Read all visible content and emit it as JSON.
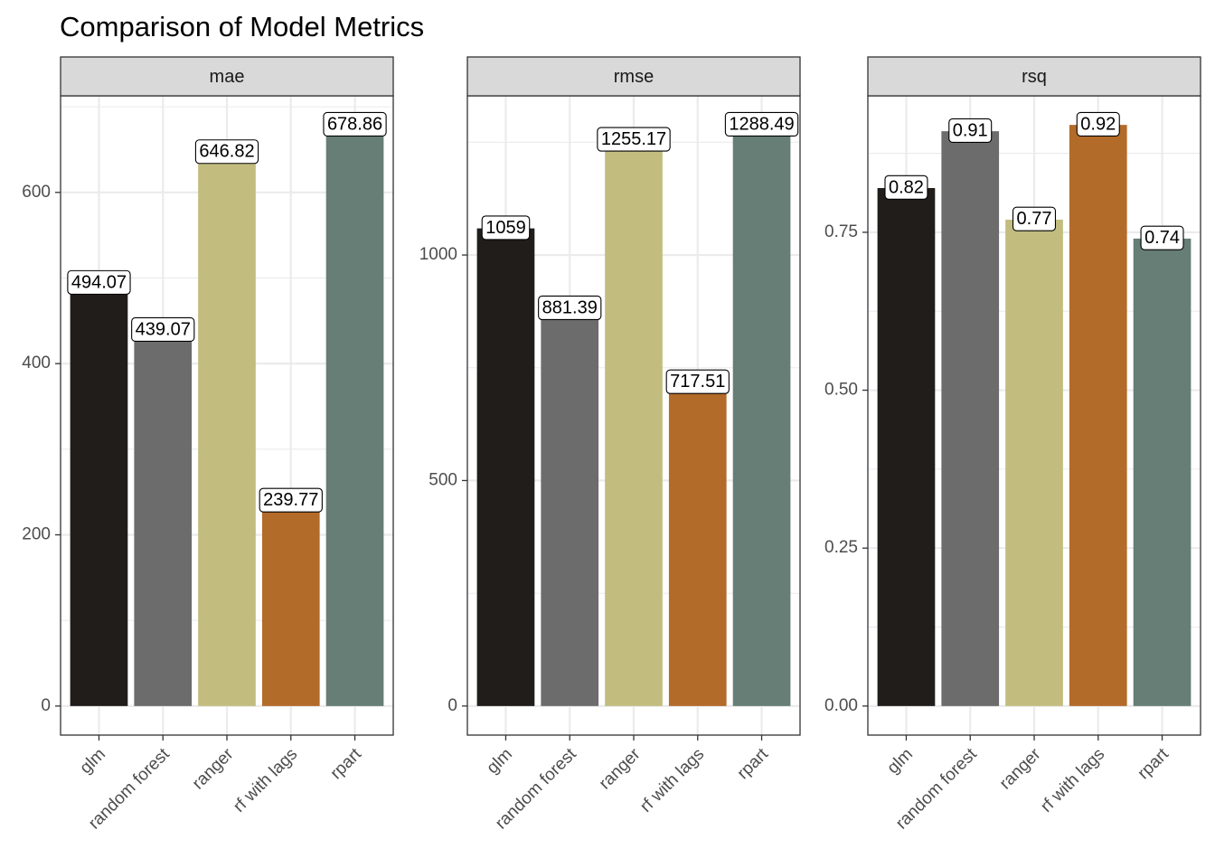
{
  "chart_data": {
    "type": "bar",
    "title": "Comparison of Model Metrics",
    "categories": [
      "glm",
      "random forest",
      "ranger",
      "rf with lags",
      "rpart"
    ],
    "colors": [
      "#211D1A",
      "#6C6C6C",
      "#C2BD7F",
      "#B36B2A",
      "#667E75"
    ],
    "grid": true,
    "legend": "none",
    "panels": [
      {
        "name": "mae",
        "values": [
          494.07,
          439.07,
          646.82,
          239.77,
          678.86
        ],
        "labels": [
          "494.07",
          "439.07",
          "646.82",
          "239.77",
          "678.86"
        ],
        "ylim": [
          -33.94,
          712.8
        ],
        "yticks": [
          0,
          200,
          400,
          600
        ],
        "ytick_labels": [
          "0",
          "200",
          "400",
          "600"
        ],
        "yminor": [
          100,
          300,
          500,
          700
        ]
      },
      {
        "name": "rmse",
        "values": [
          1059,
          881.39,
          1255.17,
          717.51,
          1288.49
        ],
        "labels": [
          "1059",
          "881.39",
          "1255.17",
          "717.51",
          "1288.49"
        ],
        "ylim": [
          -64.42,
          1352.91
        ],
        "yticks": [
          0,
          500,
          1000
        ],
        "ytick_labels": [
          "0",
          "500",
          "1000"
        ],
        "yminor": [
          250,
          750,
          1250
        ]
      },
      {
        "name": "rsq",
        "values": [
          0.82,
          0.91,
          0.77,
          0.92,
          0.74
        ],
        "labels": [
          "0.82",
          "0.91",
          "0.77",
          "0.92",
          "0.74"
        ],
        "ylim": [
          -0.046,
          0.966
        ],
        "yticks": [
          0,
          0.25,
          0.5,
          0.75
        ],
        "ytick_labels": [
          "0.00",
          "0.25",
          "0.50",
          "0.75"
        ],
        "yminor": [
          0.125,
          0.375,
          0.625,
          0.875
        ]
      }
    ]
  }
}
